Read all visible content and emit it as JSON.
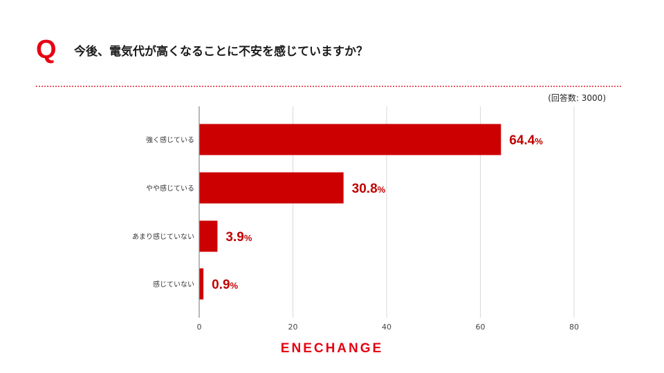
{
  "header": {
    "q_mark": "Q",
    "question": "今後、電気代が高くなることに不安を感じていますか？"
  },
  "respondents_note": "(回答数: 3000)",
  "brand": {
    "logo_text": "ENECHANGE"
  },
  "colors": {
    "bar": "#cc0000",
    "label": "#c00000",
    "accent": "#e60012",
    "grid": "#d9d9d9",
    "axis": "#888888"
  },
  "chart_data": {
    "type": "bar",
    "orientation": "horizontal",
    "categories": [
      "強く感じている",
      "やや感じている",
      "あまり感じていない",
      "感じていない"
    ],
    "values": [
      64.4,
      30.8,
      3.9,
      0.9
    ],
    "value_labels": [
      "64.4",
      "30.8",
      "3.9",
      "0.9"
    ],
    "value_suffix": "%",
    "xlim": [
      0,
      80
    ],
    "xticks": [
      0,
      20,
      40,
      60,
      80
    ],
    "grid": true
  }
}
